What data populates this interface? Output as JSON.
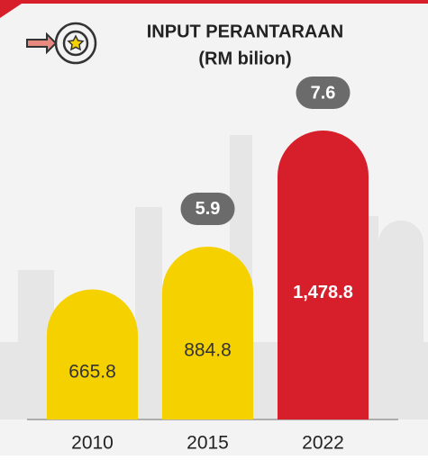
{
  "chart_data": {
    "type": "bar",
    "title": "INPUT PERANTARAAN",
    "subtitle": "(RM bilion)",
    "categories": [
      "2010",
      "2015",
      "2022"
    ],
    "values": [
      665.8,
      884.8,
      1478.8
    ],
    "value_labels": [
      "665.8",
      "884.8",
      "1,478.8"
    ],
    "colors": [
      "#f6d100",
      "#f6d100",
      "#d71f2b"
    ],
    "label_colors": [
      "#333333",
      "#333333",
      "#ffffff"
    ],
    "growth": [
      null,
      5.9,
      7.6
    ],
    "badge_color": "#6b6b6b"
  }
}
